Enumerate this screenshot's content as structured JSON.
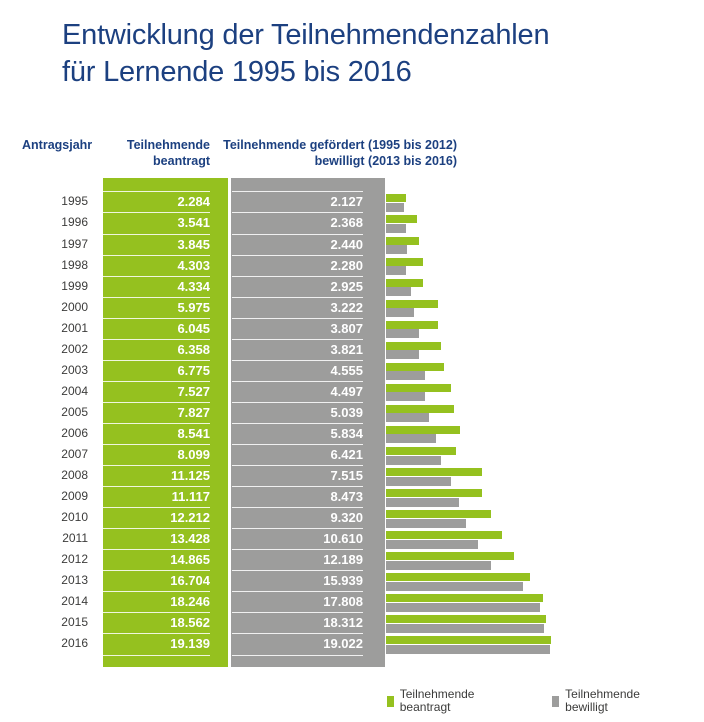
{
  "title": {
    "line1": "Entwicklung der Teilnehmendenzahlen",
    "line2": "für Lernende 1995 bis 2016"
  },
  "header": {
    "year_col": "Antragsjahr",
    "requested_line1": "Teilnehmende",
    "requested_line2": "beantragt",
    "granted_line1": "Teilnehmende gefördert (1995 bis 2012)",
    "granted_line2": "bewilligt (2013 bis 2016)"
  },
  "legend": {
    "requested": "Teilnehmende beantragt",
    "granted": "Teilnehmende bewilligt"
  },
  "colors": {
    "green": "#95c11f",
    "gray": "#9d9d9c",
    "title_blue": "#1c4080",
    "text_dark": "#3c3c3b"
  },
  "chart_data": {
    "type": "bar",
    "orientation": "horizontal",
    "title": "Entwicklung der Teilnehmendenzahlen für Lernende 1995 bis 2016",
    "xlabel": "Teilnehmende",
    "ylabel": "Antragsjahr",
    "number_format": "german thousands separator (dot)",
    "legend_position": "bottom",
    "grid": false,
    "categories": [
      1995,
      1996,
      1997,
      1998,
      1999,
      2000,
      2001,
      2002,
      2003,
      2004,
      2005,
      2006,
      2007,
      2008,
      2009,
      2010,
      2011,
      2012,
      2013,
      2014,
      2015,
      2016
    ],
    "series": [
      {
        "name": "Teilnehmende beantragt",
        "color": "#95c11f",
        "values": [
          2284,
          3541,
          3845,
          4303,
          4334,
          5975,
          6045,
          6358,
          6775,
          7527,
          7827,
          8541,
          8099,
          11125,
          11117,
          12212,
          13428,
          14865,
          16704,
          18246,
          18562,
          19139
        ]
      },
      {
        "name": "Teilnehmende bewilligt",
        "color": "#9d9d9c",
        "values": [
          2127,
          2368,
          2440,
          2280,
          2925,
          3222,
          3807,
          3821,
          4555,
          4497,
          5039,
          5834,
          6421,
          7515,
          8473,
          9320,
          10610,
          12189,
          15939,
          17808,
          18312,
          19022
        ]
      }
    ]
  }
}
